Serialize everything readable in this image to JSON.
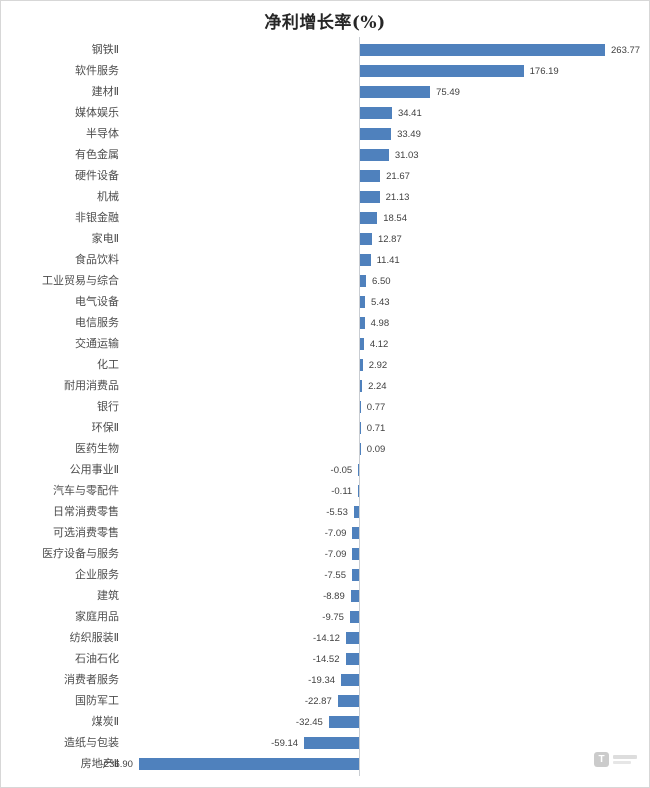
{
  "chart_data": {
    "type": "bar",
    "orientation": "horizontal",
    "title": "净利增长率(%)",
    "xlabel": "",
    "ylabel": "",
    "xlim": [
      -260,
      290
    ],
    "grid": false,
    "legend": false,
    "zero_axis_line": true,
    "bar_color": "#4f81bd",
    "axis_line_color": "#c9cdd2",
    "categories": [
      "钢铁Ⅱ",
      "软件服务",
      "建材Ⅱ",
      "媒体娱乐",
      "半导体",
      "有色金属",
      "硬件设备",
      "机械",
      "非银金融",
      "家电Ⅱ",
      "食品饮料",
      "工业贸易与综合",
      "电气设备",
      "电信服务",
      "交通运输",
      "化工",
      "耐用消费品",
      "银行",
      "环保Ⅱ",
      "医药生物",
      "公用事业Ⅱ",
      "汽车与零配件",
      "日常消费零售",
      "可选消费零售",
      "医疗设备与服务",
      "企业服务",
      "建筑",
      "家庭用品",
      "纺织服装Ⅱ",
      "石油石化",
      "消费者服务",
      "国防军工",
      "煤炭Ⅱ",
      "造纸与包装",
      "房地产Ⅱ"
    ],
    "values": [
      263.77,
      176.19,
      75.49,
      34.41,
      33.49,
      31.03,
      21.67,
      21.13,
      18.54,
      12.87,
      11.41,
      6.5,
      5.43,
      4.98,
      4.12,
      2.92,
      2.24,
      0.77,
      0.71,
      0.09,
      -0.05,
      -0.11,
      -5.53,
      -7.09,
      -7.09,
      -7.55,
      -8.89,
      -9.75,
      -14.12,
      -14.52,
      -19.34,
      -22.87,
      -32.45,
      -59.14,
      -236.9
    ],
    "value_labels": [
      "263.77",
      "176.19",
      "75.49",
      "34.41",
      "33.49",
      "31.03",
      "21.67",
      "21.13",
      "18.54",
      "12.87",
      "11.41",
      "6.50",
      "5.43",
      "4.98",
      "4.12",
      "2.92",
      "2.24",
      "0.77",
      "0.71",
      "0.09",
      "-0.05",
      "-0.11",
      "-5.53",
      "-7.09",
      "-7.09",
      "-7.55",
      "-8.89",
      "-9.75",
      "-14.12",
      "-14.52",
      "-19.34",
      "-22.87",
      "-32.45",
      "-59.14",
      "-236.90"
    ]
  },
  "watermark": {
    "logo_letter": "T"
  }
}
